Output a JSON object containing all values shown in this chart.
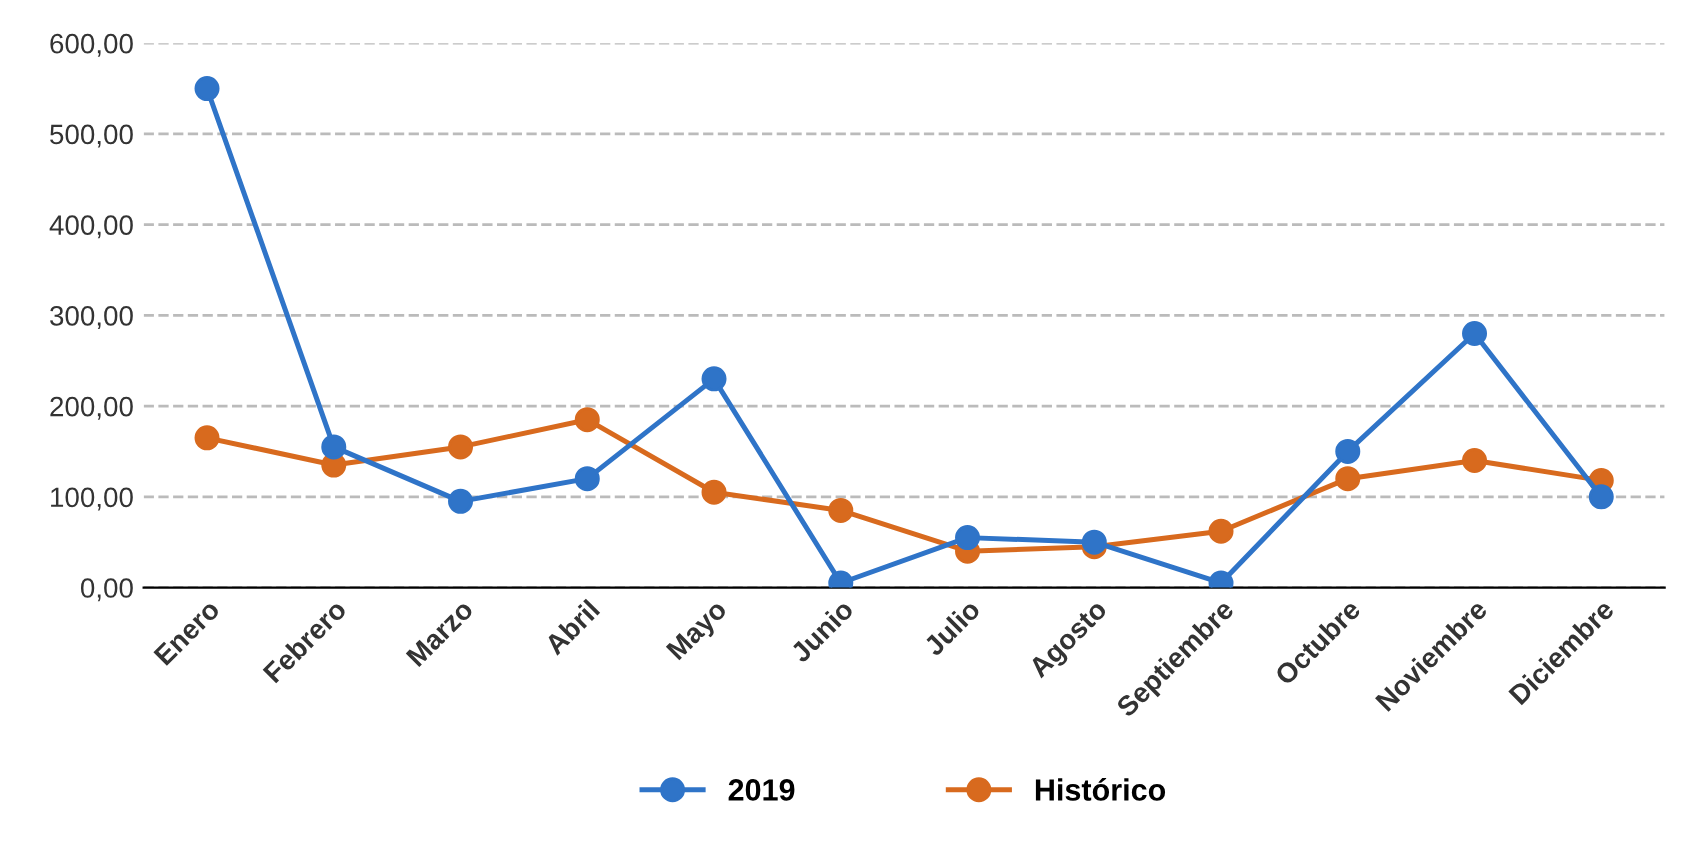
{
  "chart_data": {
    "type": "line",
    "categories": [
      "Enero",
      "Febrero",
      "Marzo",
      "Abril",
      "Mayo",
      "Junio",
      "Julio",
      "Agosto",
      "Septiembre",
      "Octubre",
      "Noviembre",
      "Diciembre"
    ],
    "series": [
      {
        "name": "2019",
        "color": "#2f74c8",
        "values": [
          550,
          155,
          95,
          120,
          230,
          5,
          55,
          50,
          5,
          150,
          280,
          100
        ]
      },
      {
        "name": "Histórico",
        "color": "#d86a1e",
        "values": [
          165,
          135,
          155,
          185,
          105,
          85,
          40,
          45,
          62,
          120,
          140,
          118
        ]
      }
    ],
    "ylim": [
      0,
      600
    ],
    "yticks": [
      {
        "value": 0,
        "label": "0,00"
      },
      {
        "value": 100,
        "label": "100,00"
      },
      {
        "value": 200,
        "label": "200,00"
      },
      {
        "value": 300,
        "label": "300,00"
      },
      {
        "value": 400,
        "label": "400,00"
      },
      {
        "value": 500,
        "label": "500,00"
      },
      {
        "value": 600,
        "label": "600,00"
      }
    ],
    "grid": "y",
    "legend": "bottom",
    "marker": "circle",
    "line_style": "solid"
  }
}
